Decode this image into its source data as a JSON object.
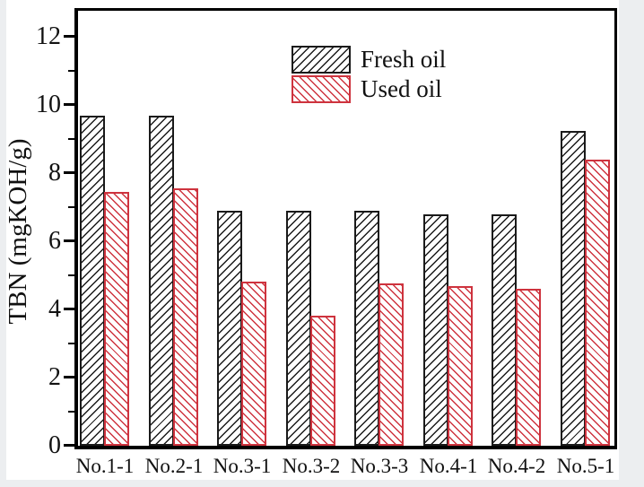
{
  "figure": {
    "background": "#eceef0",
    "panel_background": "#ffffff",
    "axis_color": "#000000"
  },
  "chart_data": {
    "type": "bar",
    "title": "",
    "xlabel": "",
    "ylabel": "TBN (mgKOH/g)",
    "categories": [
      "No.1-1",
      "No.2-1",
      "No.3-1",
      "No.3-2",
      "No.3-3",
      "No.4-1",
      "No.4-2",
      "No.5-1"
    ],
    "series": [
      {
        "name": "Fresh oil",
        "color": "#1a1a1a",
        "hatch": "/",
        "values": [
          9.68,
          9.68,
          6.9,
          6.9,
          6.9,
          6.78,
          6.78,
          9.22
        ]
      },
      {
        "name": "Used oil",
        "color": "#ce333e",
        "hatch": "\\",
        "values": [
          7.45,
          7.55,
          4.82,
          3.8,
          4.75,
          4.68,
          4.6,
          8.38
        ]
      }
    ],
    "ylim": [
      0,
      12.75
    ],
    "yticks": [
      0,
      2,
      4,
      6,
      8,
      10,
      12
    ],
    "yminorticks": [
      1,
      3,
      5,
      7,
      9,
      11
    ],
    "grid": false,
    "legend_position": "upper right inside"
  }
}
